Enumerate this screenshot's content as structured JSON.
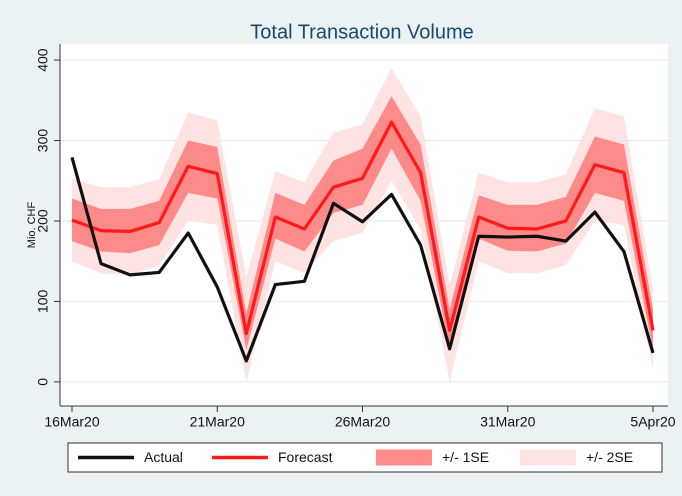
{
  "chart_data": {
    "type": "line",
    "title": "Total Transaction Volume",
    "y_label": "Mio. CHF",
    "categories": [
      "16Mar20",
      null,
      null,
      null,
      null,
      "21Mar20",
      null,
      null,
      null,
      null,
      "26Mar20",
      null,
      null,
      null,
      null,
      "31Mar20",
      null,
      null,
      null,
      null,
      "5Apr20"
    ],
    "ylim": [
      -30,
      420
    ],
    "yticks": [
      0,
      100,
      200,
      300,
      400
    ],
    "grid": true,
    "legend": "bottom",
    "series": [
      {
        "name": "Actual",
        "color": "#111111",
        "values": [
          279,
          147,
          133,
          136,
          185,
          118,
          26,
          121,
          125,
          222,
          199,
          233,
          170,
          41,
          181,
          180,
          181,
          175,
          211,
          162,
          36
        ]
      },
      {
        "name": "Forecast",
        "color": "#ff1a1a",
        "values": [
          201,
          188,
          187,
          198,
          268,
          259,
          60,
          205,
          190,
          242,
          253,
          323,
          260,
          64,
          205,
          191,
          190,
          200,
          270,
          260,
          64
        ]
      },
      {
        "name": "+/- 1SE",
        "color": "#ff8a8a",
        "lower": [
          175,
          162,
          160,
          170,
          235,
          228,
          40,
          178,
          162,
          210,
          220,
          290,
          225,
          40,
          178,
          163,
          162,
          172,
          235,
          225,
          40
        ],
        "upper": [
          228,
          215,
          215,
          225,
          300,
          292,
          85,
          235,
          220,
          275,
          290,
          355,
          295,
          90,
          232,
          220,
          220,
          230,
          305,
          295,
          90
        ]
      },
      {
        "name": "+/- 2SE",
        "color": "#ffe3e3",
        "lower": [
          150,
          135,
          133,
          145,
          200,
          195,
          0,
          150,
          135,
          175,
          185,
          250,
          190,
          0,
          150,
          135,
          135,
          145,
          200,
          195,
          15
        ],
        "upper": [
          253,
          242,
          242,
          252,
          335,
          325,
          130,
          262,
          248,
          310,
          320,
          390,
          330,
          120,
          260,
          248,
          248,
          258,
          340,
          330,
          115
        ]
      }
    ]
  }
}
